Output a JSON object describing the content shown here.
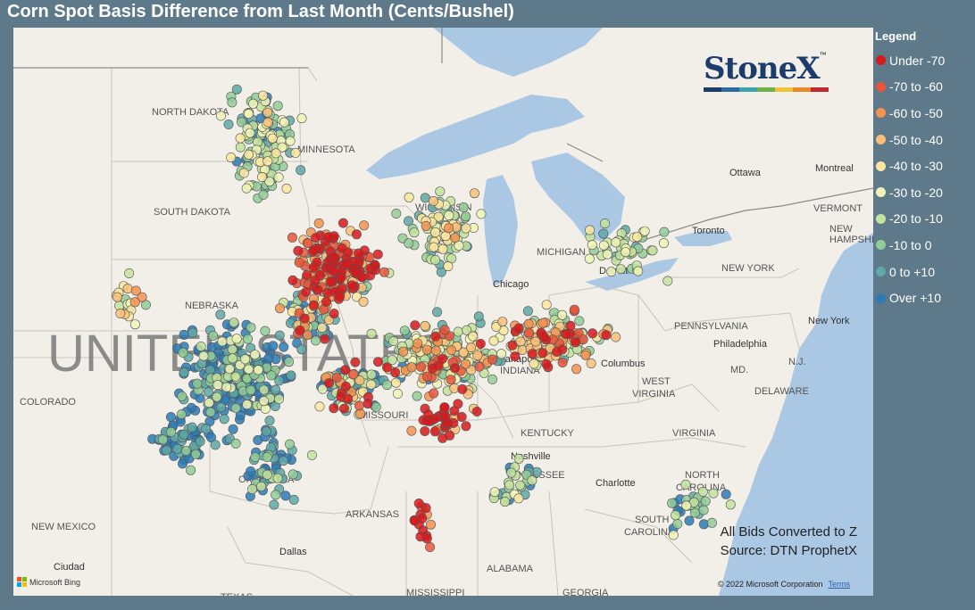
{
  "title": "Corn Spot Basis Difference from Last Month (Cents/Bushel)",
  "legend": {
    "title": "Legend",
    "items": [
      {
        "label": "Under -70",
        "color": "#d7191c"
      },
      {
        "label": "-70 to -60",
        "color": "#e8553b"
      },
      {
        "label": "-60 to -50",
        "color": "#f4924f"
      },
      {
        "label": "-50 to -40",
        "color": "#f9bf78"
      },
      {
        "label": "-40 to -30",
        "color": "#fde7a0"
      },
      {
        "label": "-30 to -20",
        "color": "#f0f4b6"
      },
      {
        "label": "-20 to -10",
        "color": "#c4e39d"
      },
      {
        "label": "-10 to 0",
        "color": "#92cd96"
      },
      {
        "label": "0 to +10",
        "color": "#5fa8a6"
      },
      {
        "label": "Over +10",
        "color": "#2c7bb6"
      }
    ]
  },
  "logo": {
    "text": "StoneX",
    "tm": "™"
  },
  "notes": {
    "line1": "All Bids Converted to Z",
    "line2": "Source: DTN ProphetX"
  },
  "copyright": {
    "text": "© 2022 Microsoft Corporation",
    "terms": "Terms"
  },
  "bing": {
    "text": "Microsoft Bing"
  },
  "map_labels": {
    "north_dakota": "NORTH DAKOTA",
    "south_dakota": "SOUTH DAKOTA",
    "minnesota": "MINNESOTA",
    "wisconsin": "WISCONSIN",
    "michigan": "MICHIGAN",
    "nebraska": "NEBRASKA",
    "colorado": "COLORADO",
    "missouri": "MISSOURI",
    "kentucky": "KENTUCKY",
    "tennessee": "TENNESSEE",
    "oklahoma": "OKLAHOMA",
    "arkansas": "ARKANSAS",
    "new_mexico": "NEW MEXICO",
    "alabama": "ALABAMA",
    "georgia": "GEORGIA",
    "mississippi": "MISSISSIPPI",
    "texas": "TEXAS",
    "west_virginia_1": "WEST",
    "west_virginia_2": "VIRGINIA",
    "virginia": "VIRGINIA",
    "north_carolina_1": "NORTH",
    "north_carolina_2": "CAROLINA",
    "south_carolina_1": "SOUTH",
    "south_carolina_2": "CAROLINA",
    "pennsylvania": "PENNSYLVANIA",
    "new_york_state": "NEW YORK",
    "vermont": "VERMONT",
    "new_hampshire_1": "NEW",
    "new_hampshire_2": "HAMPSHIRE",
    "md": "MD.",
    "nj": "N.J.",
    "delaware": "DELAWARE",
    "indiana": "INDIANA",
    "ottawa": "Ottawa",
    "montreal": "Montreal",
    "toronto": "Toronto",
    "detroit": "Detroit",
    "chicago": "Chicago",
    "columbus": "Columbus",
    "philadelphia": "Philadelphia",
    "new_york_city": "New York",
    "nashville": "Nashville",
    "charlotte": "Charlotte",
    "dallas": "Dallas",
    "ciudad": "Ciudad",
    "indianapolis": "Indianapolis",
    "united_states": "UNITED STATES"
  }
}
